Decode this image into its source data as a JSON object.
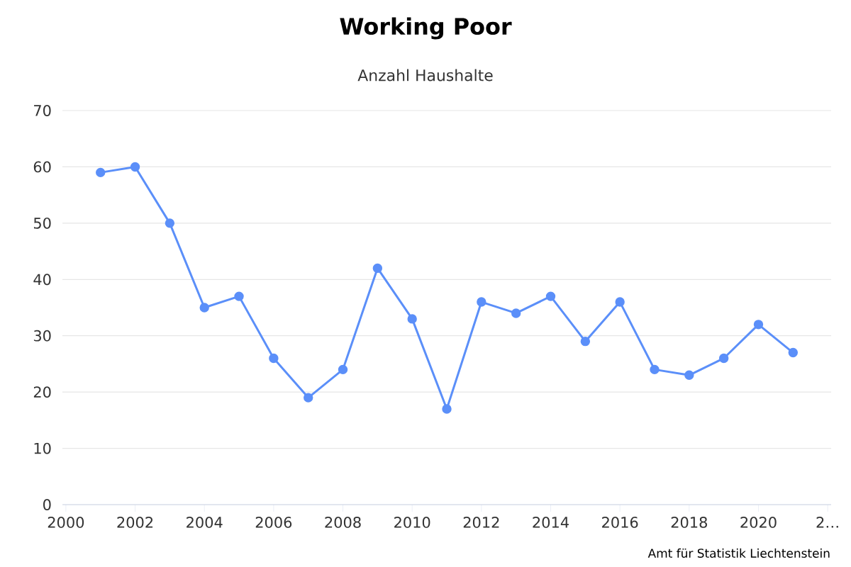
{
  "chart_data": {
    "type": "line",
    "title": "Working Poor",
    "subtitle": "Anzahl Haushalte",
    "x": [
      2001,
      2002,
      2003,
      2004,
      2005,
      2006,
      2007,
      2008,
      2009,
      2010,
      2011,
      2012,
      2013,
      2014,
      2015,
      2016,
      2017,
      2018,
      2019,
      2020,
      2021
    ],
    "series": [
      {
        "color": "#5b8ff9",
        "values": [
          59,
          60,
          50,
          35,
          37,
          26,
          19,
          24,
          42,
          33,
          17,
          36,
          34,
          37,
          29,
          36,
          24,
          23,
          26,
          32,
          27
        ]
      }
    ],
    "xlim": [
      1999.9,
      2022.1
    ],
    "ylim": [
      0,
      70
    ],
    "xticks": [
      2000,
      2002,
      2004,
      2006,
      2008,
      2010,
      2012,
      2014,
      2016,
      2018,
      2020,
      {
        "value": 2022,
        "label": "2…"
      }
    ],
    "yticks": [
      0,
      10,
      20,
      30,
      40,
      50,
      60,
      70
    ],
    "grid": "y",
    "marker": "circle",
    "line_style": "solid",
    "annotations": [
      "Amt für Statistik Liechtenstein"
    ]
  }
}
